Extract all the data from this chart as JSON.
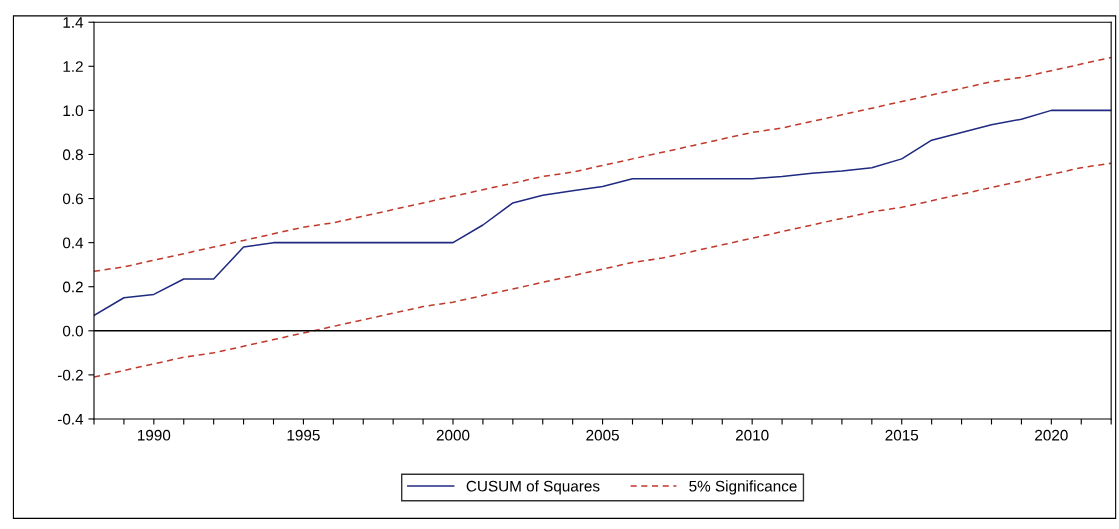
{
  "chart_data": {
    "type": "line",
    "x": [
      1988,
      1989,
      1990,
      1991,
      1992,
      1993,
      1994,
      1995,
      1996,
      1997,
      1998,
      1999,
      2000,
      2001,
      2002,
      2003,
      2004,
      2005,
      2006,
      2007,
      2008,
      2009,
      2010,
      2011,
      2012,
      2013,
      2014,
      2015,
      2016,
      2017,
      2018,
      2019,
      2020,
      2021,
      2022
    ],
    "series": [
      {
        "name": "CUSUM of Squares",
        "color": "#1f2a80",
        "line_style": "solid",
        "values": [
          0.07,
          0.15,
          0.165,
          0.235,
          0.235,
          0.38,
          0.4,
          0.4,
          0.4,
          0.4,
          0.4,
          0.4,
          0.4,
          0.48,
          0.58,
          0.615,
          0.635,
          0.655,
          0.69,
          0.69,
          0.69,
          0.69,
          0.69,
          0.7,
          0.715,
          0.725,
          0.74,
          0.78,
          0.865,
          0.9,
          0.935,
          0.96,
          1.0,
          1.0,
          1.0
        ]
      },
      {
        "name": "5% Significance",
        "color": "#c0392b",
        "line_style": "dashed",
        "values": [
          0.27,
          0.29,
          0.32,
          0.35,
          0.38,
          0.41,
          0.44,
          0.47,
          0.49,
          0.52,
          0.55,
          0.58,
          0.61,
          0.64,
          0.67,
          0.7,
          0.72,
          0.75,
          0.78,
          0.81,
          0.84,
          0.87,
          0.9,
          0.92,
          0.95,
          0.98,
          1.01,
          1.04,
          1.07,
          1.1,
          1.13,
          1.15,
          1.18,
          1.21,
          1.24
        ]
      },
      {
        "color": "#c0392b",
        "line_style": "dashed",
        "values": [
          -0.21,
          -0.18,
          -0.15,
          -0.12,
          -0.1,
          -0.07,
          -0.04,
          -0.01,
          0.02,
          0.05,
          0.08,
          0.11,
          0.13,
          0.16,
          0.19,
          0.22,
          0.25,
          0.28,
          0.31,
          0.33,
          0.36,
          0.39,
          0.42,
          0.45,
          0.48,
          0.51,
          0.54,
          0.56,
          0.59,
          0.62,
          0.65,
          0.68,
          0.71,
          0.74,
          0.76
        ]
      }
    ],
    "xlim": [
      1988,
      2022
    ],
    "xticks": [
      {
        "value": 1988,
        "label": null
      },
      {
        "value": 1989,
        "label": null
      },
      1990,
      {
        "value": 1991,
        "label": null
      },
      {
        "value": 1992,
        "label": null
      },
      {
        "value": 1993,
        "label": null
      },
      {
        "value": 1994,
        "label": null
      },
      1995,
      {
        "value": 1996,
        "label": null
      },
      {
        "value": 1997,
        "label": null
      },
      {
        "value": 1998,
        "label": null
      },
      {
        "value": 1999,
        "label": null
      },
      2000,
      {
        "value": 2001,
        "label": null
      },
      {
        "value": 2002,
        "label": null
      },
      {
        "value": 2003,
        "label": null
      },
      {
        "value": 2004,
        "label": null
      },
      2005,
      {
        "value": 2006,
        "label": null
      },
      {
        "value": 2007,
        "label": null
      },
      {
        "value": 2008,
        "label": null
      },
      {
        "value": 2009,
        "label": null
      },
      2010,
      {
        "value": 2011,
        "label": null
      },
      {
        "value": 2012,
        "label": null
      },
      {
        "value": 2013,
        "label": null
      },
      {
        "value": 2014,
        "label": null
      },
      2015,
      {
        "value": 2016,
        "label": null
      },
      {
        "value": 2017,
        "label": null
      },
      {
        "value": 2018,
        "label": null
      },
      {
        "value": 2019,
        "label": null
      },
      2020,
      {
        "value": 2021,
        "label": null
      },
      {
        "value": 2022,
        "label": null
      }
    ],
    "ylim": [
      -0.4,
      1.4
    ],
    "yticks": [
      {
        "value": -0.4,
        "label": "-0.4"
      },
      {
        "value": -0.2,
        "label": "-0.2"
      },
      {
        "value": 0,
        "label": "0.0"
      },
      {
        "value": 0.2,
        "label": "0.2"
      },
      {
        "value": 0.4,
        "label": "0.4"
      },
      {
        "value": 0.6,
        "label": "0.6"
      },
      {
        "value": 0.8,
        "label": "0.8"
      },
      {
        "value": 1.0,
        "label": "1.0"
      },
      {
        "value": 1.2,
        "label": "1.2"
      },
      {
        "value": 1.4,
        "label": "1.4"
      }
    ],
    "ref_lines": [
      {
        "axis": "y",
        "value": 0,
        "color": "#000000",
        "line_style": "solid"
      }
    ],
    "grid": false,
    "legend": "bottom",
    "marker": "none"
  }
}
